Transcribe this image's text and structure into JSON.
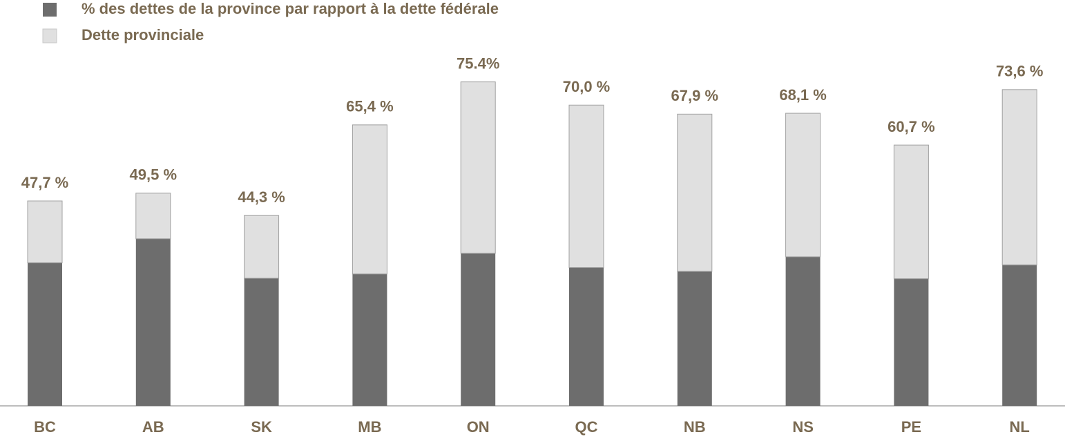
{
  "chart_data": {
    "type": "stacked_bar",
    "categories": [
      "BC",
      "AB",
      "SK",
      "MB",
      "ON",
      "QC",
      "NB",
      "NS",
      "PE",
      "NL"
    ],
    "series": [
      {
        "name": "% des dettes de la province par rapport à la dette fédérale",
        "color": "#6d6d6d",
        "values": [
          33.3,
          38.9,
          29.7,
          30.7,
          35.5,
          32.2,
          31.3,
          34.7,
          29.6,
          32.8
        ]
      },
      {
        "name": "Dette provinciale",
        "color": "#e0e0e0",
        "values": [
          14.4,
          10.6,
          14.6,
          34.7,
          39.9,
          37.8,
          36.6,
          33.4,
          31.1,
          40.8
        ]
      }
    ],
    "total_labels": [
      "47,7 %",
      "49,5 %",
      "44,3 %",
      "65,4 %",
      "75.4%",
      "70,0 %",
      "67,9 %",
      "68,1 %",
      "60,7 %",
      "73,6 %"
    ],
    "ylim": [
      0,
      80
    ],
    "legend": "top-left"
  }
}
